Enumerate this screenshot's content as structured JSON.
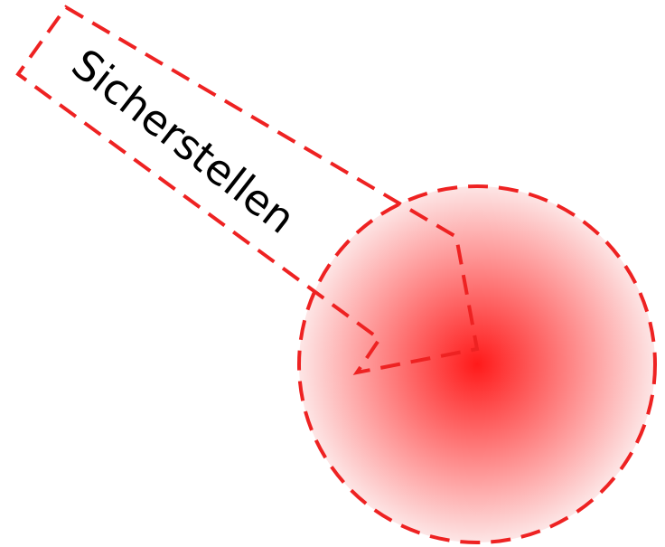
{
  "diagram": {
    "arrow_label": "Sicherstellen",
    "stroke_color": "#ee2222",
    "target_center_color": "#ff1a1a",
    "target_edge_color": "#fde6e6",
    "background_color": "#ffffff"
  }
}
